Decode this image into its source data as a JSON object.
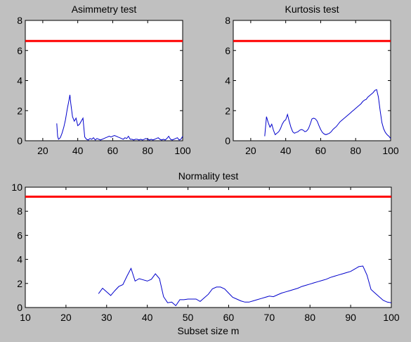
{
  "chart_data": [
    {
      "type": "line",
      "title": "Asimmetry test",
      "xlabel": "",
      "ylabel": "",
      "xlim": [
        10,
        100
      ],
      "ylim": [
        0,
        8
      ],
      "xticks": [
        20,
        40,
        60,
        80,
        100
      ],
      "yticks": [
        0,
        2,
        4,
        6,
        8
      ],
      "grid": false,
      "threshold": {
        "value": 6.63,
        "color": "#ff0000"
      },
      "series": [
        {
          "color": "#0000cc",
          "x": [
            28,
            28.5,
            29,
            30,
            31,
            32,
            33,
            34,
            35,
            35.5,
            36,
            37,
            38,
            39,
            40,
            41,
            42,
            43,
            44,
            45,
            46,
            47,
            48,
            49,
            50,
            51,
            52,
            53,
            54,
            55,
            56,
            57,
            58,
            59,
            60,
            61,
            62,
            63,
            64,
            65,
            66,
            67,
            68,
            69,
            70,
            71,
            72,
            73,
            74,
            75,
            76,
            77,
            78,
            79,
            80,
            81,
            82,
            83,
            84,
            85,
            86,
            87,
            88,
            89,
            90,
            91,
            92,
            93,
            94,
            95,
            96,
            97,
            98,
            99,
            100
          ],
          "y": [
            1.15,
            0.3,
            0.1,
            0.2,
            0.5,
            0.9,
            1.4,
            2.1,
            2.7,
            3.05,
            2.5,
            1.6,
            1.3,
            1.5,
            1.0,
            1.1,
            1.3,
            1.5,
            0.25,
            0.1,
            0.05,
            0.15,
            0.1,
            0.2,
            0.05,
            0.15,
            0.1,
            0.05,
            0.1,
            0.15,
            0.2,
            0.25,
            0.3,
            0.25,
            0.3,
            0.35,
            0.3,
            0.25,
            0.2,
            0.15,
            0.1,
            0.2,
            0.15,
            0.3,
            0.1,
            0.1,
            0.05,
            0.1,
            0.1,
            0.05,
            0.1,
            0.05,
            0.1,
            0.15,
            0.1,
            0.05,
            0.1,
            0.05,
            0.1,
            0.15,
            0.2,
            0.1,
            0.05,
            0.1,
            0.05,
            0.15,
            0.3,
            0.1,
            0.05,
            0.1,
            0.15,
            0.2,
            0.05,
            0.1,
            0.3
          ]
        }
      ]
    },
    {
      "type": "line",
      "title": "Kurtosis test",
      "xlabel": "",
      "ylabel": "",
      "xlim": [
        10,
        100
      ],
      "ylim": [
        0,
        8
      ],
      "xticks": [
        20,
        40,
        60,
        80,
        100
      ],
      "yticks": [
        0,
        2,
        4,
        6,
        8
      ],
      "grid": false,
      "threshold": {
        "value": 6.63,
        "color": "#ff0000"
      },
      "series": [
        {
          "color": "#0000cc",
          "x": [
            28,
            29,
            30,
            31,
            32,
            33,
            34,
            35,
            36,
            37,
            38,
            39,
            40,
            41,
            42,
            43,
            44,
            45,
            46,
            47,
            48,
            49,
            50,
            51,
            52,
            53,
            54,
            55,
            56,
            57,
            58,
            59,
            60,
            61,
            62,
            63,
            64,
            65,
            66,
            67,
            68,
            69,
            70,
            71,
            72,
            73,
            74,
            75,
            76,
            77,
            78,
            79,
            80,
            81,
            82,
            83,
            84,
            85,
            86,
            87,
            88,
            89,
            90,
            91,
            92,
            93,
            94,
            95,
            96,
            97,
            98,
            99,
            100
          ],
          "y": [
            0.3,
            1.6,
            1.2,
            0.9,
            1.1,
            0.7,
            0.4,
            0.5,
            0.6,
            0.8,
            1.1,
            1.3,
            1.4,
            1.75,
            1.3,
            0.9,
            0.6,
            0.5,
            0.55,
            0.6,
            0.7,
            0.75,
            0.7,
            0.6,
            0.65,
            0.8,
            1.1,
            1.45,
            1.5,
            1.45,
            1.3,
            1.0,
            0.75,
            0.55,
            0.45,
            0.4,
            0.45,
            0.5,
            0.6,
            0.75,
            0.85,
            0.95,
            1.1,
            1.25,
            1.35,
            1.45,
            1.55,
            1.65,
            1.75,
            1.85,
            1.95,
            2.05,
            2.15,
            2.25,
            2.35,
            2.45,
            2.6,
            2.7,
            2.75,
            2.9,
            3.0,
            3.1,
            3.2,
            3.35,
            3.4,
            2.9,
            2.0,
            1.2,
            0.8,
            0.55,
            0.4,
            0.3,
            0.15
          ]
        }
      ]
    },
    {
      "type": "line",
      "title": "Normality test",
      "xlabel": "Subset size m",
      "ylabel": "",
      "xlim": [
        10,
        100
      ],
      "ylim": [
        0,
        10
      ],
      "xticks": [
        10,
        20,
        30,
        40,
        50,
        60,
        70,
        80,
        90,
        100
      ],
      "yticks": [
        0,
        2,
        4,
        6,
        8,
        10
      ],
      "grid": false,
      "threshold": {
        "value": 9.21,
        "color": "#ff0000"
      },
      "series": [
        {
          "color": "#0000cc",
          "x": [
            28,
            29,
            30,
            31,
            32,
            33,
            34,
            35,
            36,
            37,
            38,
            39,
            40,
            41,
            42,
            43,
            44,
            45,
            46,
            47,
            48,
            49,
            50,
            51,
            52,
            53,
            54,
            55,
            56,
            57,
            58,
            59,
            60,
            61,
            62,
            63,
            64,
            65,
            66,
            67,
            68,
            69,
            70,
            71,
            72,
            73,
            74,
            75,
            76,
            77,
            78,
            79,
            80,
            81,
            82,
            83,
            84,
            85,
            86,
            87,
            88,
            89,
            90,
            91,
            92,
            93,
            94,
            95,
            96,
            97,
            98,
            99,
            100
          ],
          "y": [
            1.15,
            1.6,
            1.3,
            1.0,
            1.4,
            1.75,
            1.9,
            2.6,
            3.25,
            2.2,
            2.4,
            2.3,
            2.2,
            2.35,
            2.8,
            2.4,
            0.9,
            0.4,
            0.45,
            0.15,
            0.65,
            0.65,
            0.7,
            0.7,
            0.7,
            0.5,
            0.8,
            1.1,
            1.55,
            1.7,
            1.7,
            1.55,
            1.2,
            0.85,
            0.7,
            0.55,
            0.45,
            0.45,
            0.55,
            0.65,
            0.75,
            0.85,
            0.95,
            0.9,
            1.05,
            1.2,
            1.3,
            1.4,
            1.5,
            1.6,
            1.75,
            1.85,
            1.95,
            2.05,
            2.15,
            2.25,
            2.35,
            2.5,
            2.6,
            2.7,
            2.8,
            2.9,
            3.0,
            3.2,
            3.4,
            3.45,
            2.7,
            1.5,
            1.2,
            0.9,
            0.6,
            0.45,
            0.4
          ]
        }
      ]
    }
  ]
}
